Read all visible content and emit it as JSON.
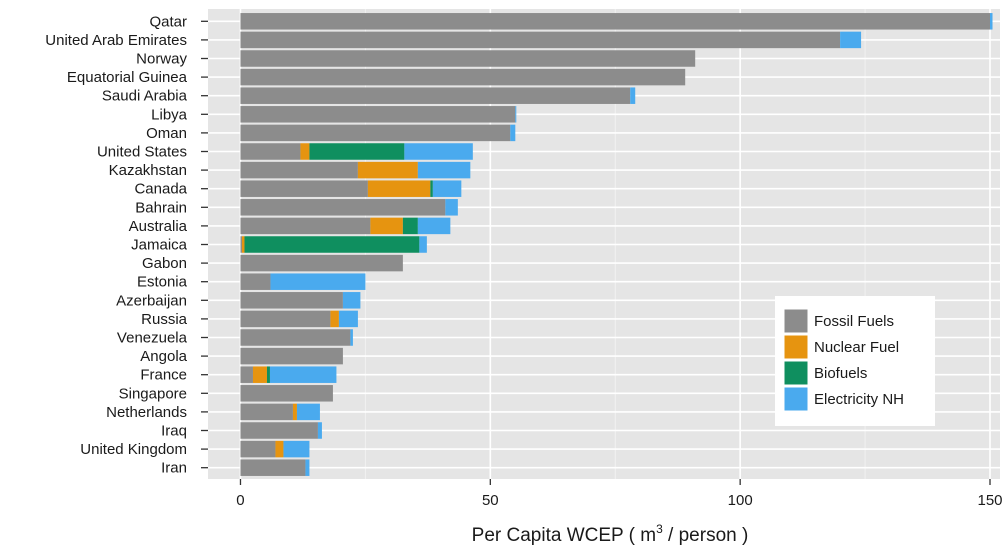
{
  "chart_data": {
    "type": "bar",
    "stacked": true,
    "orientation": "horizontal",
    "title": "",
    "xlabel": "Per Capita WCEP ( m",
    "xlabel_sup": "3",
    "xlabel_suffix": " / person )",
    "ylabel": "",
    "xlim": [
      -6.5,
      152
    ],
    "xticks": [
      0,
      50,
      100,
      150
    ],
    "grid": true,
    "legend_position": "bottom-right",
    "categories": [
      "Qatar",
      "United Arab Emirates",
      "Norway",
      "Equatorial Guinea",
      "Saudi Arabia",
      "Libya",
      "Oman",
      "United States",
      "Kazakhstan",
      "Canada",
      "Bahrain",
      "Australia",
      "Jamaica",
      "Gabon",
      "Estonia",
      "Azerbaijan",
      "Russia",
      "Venezuela",
      "Angola",
      "France",
      "Singapore",
      "Netherlands",
      "Iraq",
      "United Kingdom",
      "Iran"
    ],
    "series": [
      {
        "name": "Fossil Fuels",
        "color": "#8c8c8c",
        "values": [
          150,
          120,
          91,
          89,
          78,
          55,
          54,
          12,
          23.5,
          25.5,
          41,
          26,
          0.3,
          32.5,
          6,
          20.5,
          18,
          22,
          20.5,
          2.5,
          18.5,
          10.5,
          15.5,
          7,
          13
        ]
      },
      {
        "name": "Nuclear Fuel",
        "color": "#e69410",
        "values": [
          0,
          0,
          0,
          0,
          0,
          0,
          0,
          1.8,
          12,
          12.5,
          0,
          6.5,
          0.5,
          0,
          0,
          0,
          1.7,
          0,
          0,
          2.8,
          0,
          0.8,
          0,
          1.6,
          0
        ]
      },
      {
        "name": "Biofuels",
        "color": "#0f8f5f",
        "values": [
          0,
          0,
          0,
          0,
          0,
          0,
          0,
          19,
          0,
          0.5,
          0,
          3,
          35,
          0,
          0,
          0,
          0,
          0,
          0,
          0.6,
          0,
          0,
          0,
          0,
          0
        ]
      },
      {
        "name": "Electricity NH",
        "color": "#4aaaee",
        "values": [
          0.5,
          4.2,
          0,
          0,
          1,
          0.2,
          1,
          13.7,
          10.5,
          5.7,
          2.5,
          6.5,
          1.5,
          0,
          19,
          3.5,
          3.8,
          0.5,
          0,
          13.3,
          0,
          4.6,
          0.8,
          5.2,
          0.8
        ]
      }
    ]
  }
}
